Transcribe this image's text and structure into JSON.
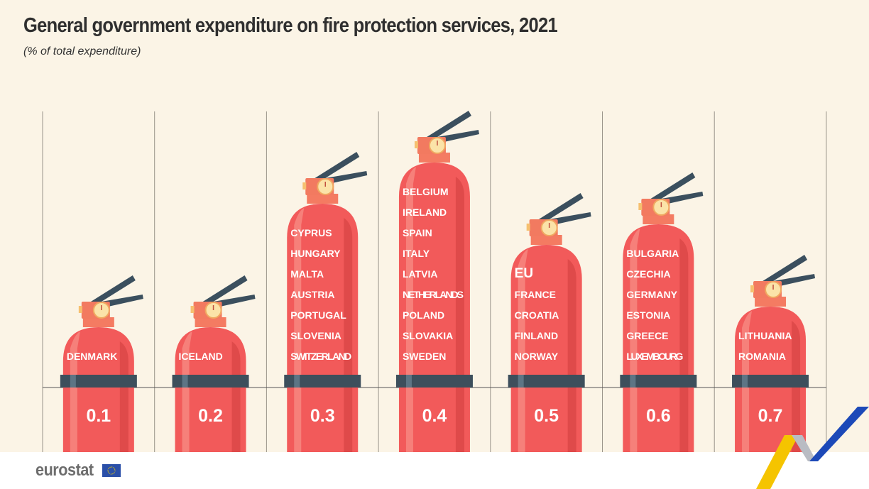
{
  "title": "General government expenditure on fire protection services, 2021",
  "subtitle": "(% of total expenditure)",
  "logo_text": "eurostat",
  "colors": {
    "background": "#fbf4e6",
    "extinguisher": "#f25a5a",
    "band": "#3d4f5c",
    "handle": "#3b4f5e"
  },
  "chart_data": {
    "type": "pictogram",
    "unit": "% of total expenditure",
    "categories": [
      "0.1",
      "0.2",
      "0.3",
      "0.4",
      "0.5",
      "0.6",
      "0.7"
    ],
    "values": [
      0.1,
      0.2,
      0.3,
      0.4,
      0.5,
      0.6,
      0.7
    ],
    "groups": [
      {
        "value": "0.1",
        "countries": [
          "DENMARK"
        ]
      },
      {
        "value": "0.2",
        "countries": [
          "ICELAND"
        ]
      },
      {
        "value": "0.3",
        "countries": [
          "CYPRUS",
          "HUNGARY",
          "MALTA",
          "AUSTRIA",
          "PORTUGAL",
          "SLOVENIA",
          "SWITZERLAND"
        ]
      },
      {
        "value": "0.4",
        "countries": [
          "BELGIUM",
          "IRELAND",
          "SPAIN",
          "ITALY",
          "LATVIA",
          "NETHERLANDS",
          "POLAND",
          "SLOVAKIA",
          "SWEDEN"
        ]
      },
      {
        "value": "0.5",
        "countries": [
          "EU",
          "FRANCE",
          "CROATIA",
          "FINLAND",
          "NORWAY"
        ]
      },
      {
        "value": "0.6",
        "countries": [
          "BULGARIA",
          "CZECHIA",
          "GERMANY",
          "ESTONIA",
          "GREECE",
          "LUXEMBOURG"
        ]
      },
      {
        "value": "0.7",
        "countries": [
          "LITHUANIA",
          "ROMANIA"
        ]
      }
    ]
  }
}
